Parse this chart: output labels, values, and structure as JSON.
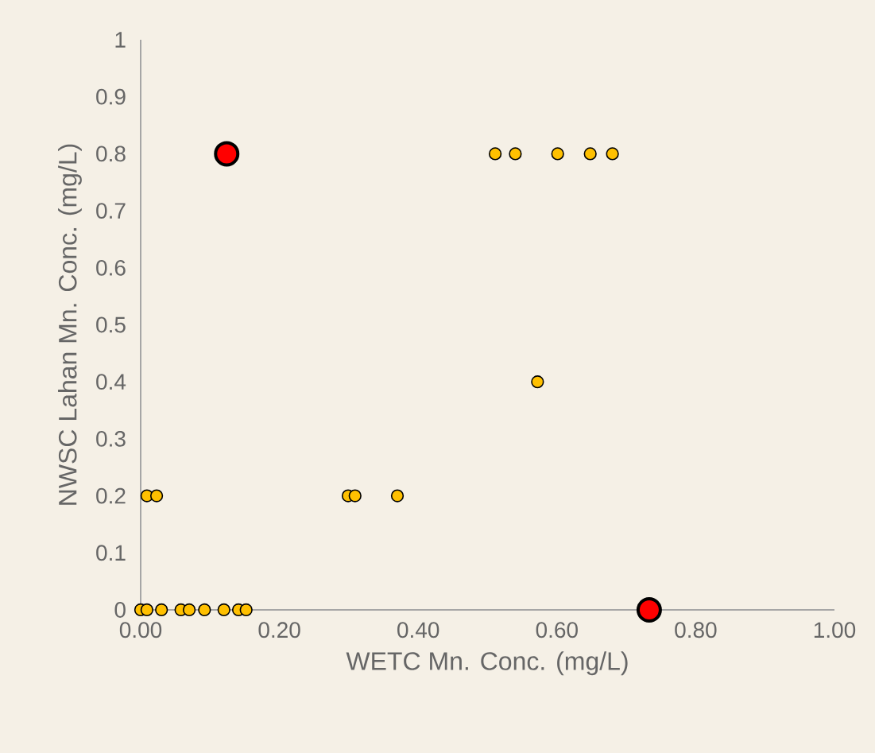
{
  "chart_data": {
    "type": "scatter",
    "xlabel": "WETC Mn. Conc. (mg/L)",
    "ylabel": "NWSC Lahan Mn. Conc. (mg/L)",
    "marker": "circle",
    "xlim": [
      0,
      1
    ],
    "ylim": [
      0,
      1
    ],
    "xticks": [
      {
        "value": 0,
        "label": "0.00"
      },
      {
        "value": 0.2,
        "label": "0.20"
      },
      {
        "value": 0.4,
        "label": "0.40"
      },
      {
        "value": 0.6,
        "label": "0.60"
      },
      {
        "value": 0.8,
        "label": "0.80"
      },
      {
        "value": 1,
        "label": "1.00"
      }
    ],
    "yticks": [
      0,
      0.1,
      0.2,
      0.3,
      0.4,
      0.5,
      0.6,
      0.7,
      0.8,
      0.9,
      1
    ],
    "series": [
      {
        "color": "#ffc000",
        "x": [
          0.511,
          0.54,
          0.601,
          0.648,
          0.68,
          0.572,
          0.009,
          0.023,
          0.299,
          0.309,
          0.37,
          0.0,
          0.009,
          0.03,
          0.058,
          0.07,
          0.092,
          0.12,
          0.141,
          0.152
        ],
        "values": [
          0.8,
          0.8,
          0.8,
          0.8,
          0.8,
          0.4,
          0.2,
          0.2,
          0.2,
          0.2,
          0.2,
          0,
          0,
          0,
          0,
          0,
          0,
          0,
          0,
          0
        ]
      },
      {
        "color": "#ff0000",
        "x": [
          0.124,
          0.733
        ],
        "values": [
          0.8,
          0
        ]
      }
    ]
  }
}
